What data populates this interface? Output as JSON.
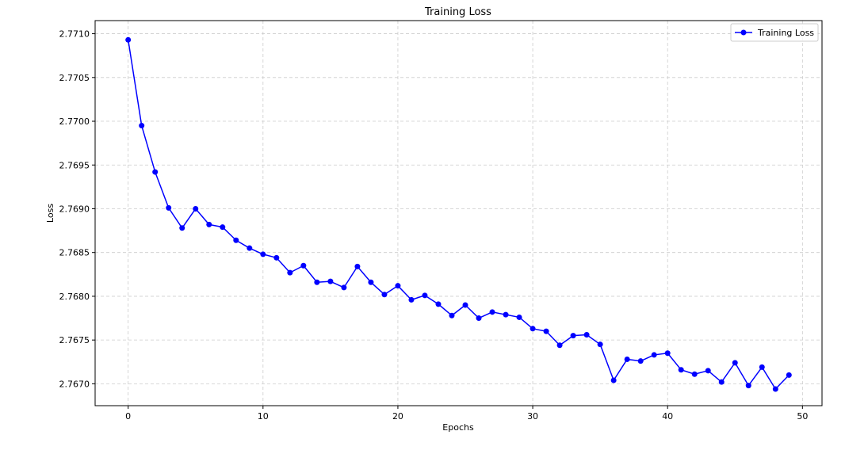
{
  "chart_data": {
    "type": "line",
    "title": "Training Loss",
    "xlabel": "Epochs",
    "ylabel": "Loss",
    "xlim": [
      -2.45,
      51.45
    ],
    "ylim": [
      2.76675,
      2.77115
    ],
    "xticks": [
      0,
      10,
      20,
      30,
      40,
      50
    ],
    "xtick_labels": [
      "0",
      "10",
      "20",
      "30",
      "40",
      "50"
    ],
    "yticks": [
      2.767,
      2.7675,
      2.768,
      2.7685,
      2.769,
      2.7695,
      2.77,
      2.7705,
      2.771
    ],
    "ytick_labels": [
      "2.7670",
      "2.7675",
      "2.7680",
      "2.7685",
      "2.7690",
      "2.7695",
      "2.7700",
      "2.7705",
      "2.7710"
    ],
    "grid": true,
    "legend_position": "top-right",
    "series": [
      {
        "name": "Training Loss",
        "color": "#0000ff",
        "marker": "circle",
        "x": [
          0,
          1,
          2,
          3,
          4,
          5,
          6,
          7,
          8,
          9,
          10,
          11,
          12,
          13,
          14,
          15,
          16,
          17,
          18,
          19,
          20,
          21,
          22,
          23,
          24,
          25,
          26,
          27,
          28,
          29,
          30,
          31,
          32,
          33,
          34,
          35,
          36,
          37,
          38,
          39,
          40,
          41,
          42,
          43,
          44,
          45,
          46,
          47,
          48,
          49
        ],
        "values": [
          2.77093,
          2.76995,
          2.76942,
          2.76901,
          2.76878,
          2.769,
          2.76882,
          2.76879,
          2.76864,
          2.76855,
          2.76848,
          2.76844,
          2.76827,
          2.76835,
          2.76816,
          2.76817,
          2.7681,
          2.76834,
          2.76816,
          2.76802,
          2.76812,
          2.76796,
          2.76801,
          2.76791,
          2.76778,
          2.7679,
          2.76775,
          2.76782,
          2.76779,
          2.76776,
          2.76763,
          2.7676,
          2.76744,
          2.76755,
          2.76756,
          2.76745,
          2.76704,
          2.76728,
          2.76726,
          2.76733,
          2.76735,
          2.76716,
          2.76711,
          2.76715,
          2.76702,
          2.76724,
          2.76698,
          2.76719,
          2.76694,
          2.7671
        ]
      }
    ]
  }
}
